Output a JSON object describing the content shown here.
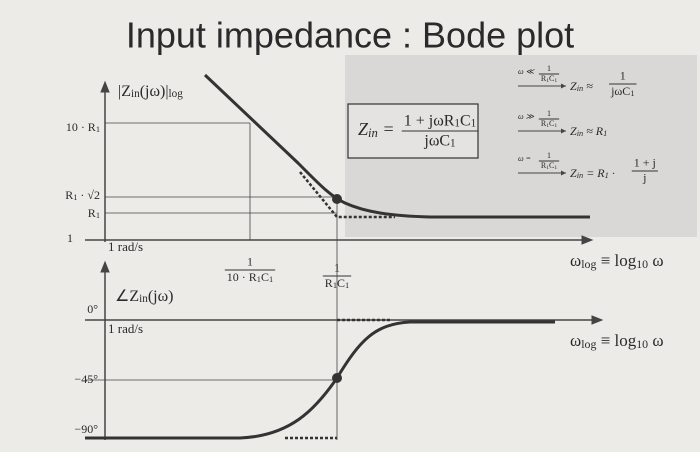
{
  "title": "Input impedance : Bode plot",
  "magnitude": {
    "axis_label": [
      "|Z",
      "in",
      "(jω)|",
      "log"
    ],
    "y_ticks": {
      "ten_r1": [
        "10 · R",
        "1"
      ],
      "r1_sqrt2": [
        "R",
        "1",
        " · √2"
      ],
      "r1": [
        "R",
        "1"
      ],
      "one": "1"
    },
    "origin_label": "1 rad/s",
    "x_ticks": {
      "decade": {
        "num": "1",
        "den": [
          "10 · R",
          "1",
          "C",
          "1"
        ]
      },
      "corner": {
        "num": "1",
        "den": [
          "R",
          "1",
          "C",
          "1"
        ]
      }
    },
    "x_axis_label": [
      "ω",
      "log",
      " ≡ log",
      "10",
      " ω"
    ]
  },
  "formula": {
    "lhs": [
      "Z",
      "in",
      " ="
    ],
    "num": [
      "1 + jωR",
      "1",
      "C",
      "1"
    ],
    "den": [
      "jωC",
      "1"
    ]
  },
  "cases": [
    {
      "condition": "ω ≪",
      "cond_num": "1",
      "cond_den": [
        "R",
        "1",
        "C",
        "1"
      ],
      "result": [
        "Z",
        "in",
        " ≈"
      ],
      "res_num": "1",
      "res_den": [
        "jωC",
        "1"
      ]
    },
    {
      "condition": "ω ≫",
      "cond_num": "1",
      "cond_den": [
        "R",
        "1",
        "C",
        "1"
      ],
      "result": [
        "Z",
        "in",
        " ≈ R",
        "1"
      ]
    },
    {
      "condition": "ω =",
      "cond_num": "1",
      "cond_den": [
        "R",
        "1",
        "C",
        "1"
      ],
      "result": [
        "Z",
        "in",
        " = R",
        "1",
        " ·"
      ],
      "res_num": "1 + j",
      "res_den": "j"
    }
  ],
  "phase": {
    "axis_label": [
      "∠Z",
      "in",
      "(jω)"
    ],
    "y_ticks": {
      "zero": "0°",
      "minus45": "−45°",
      "minus90": "−90°"
    },
    "origin_label": "1 rad/s",
    "x_axis_label": [
      "ω",
      "log",
      " ≡ log",
      "10",
      " ω"
    ]
  }
}
